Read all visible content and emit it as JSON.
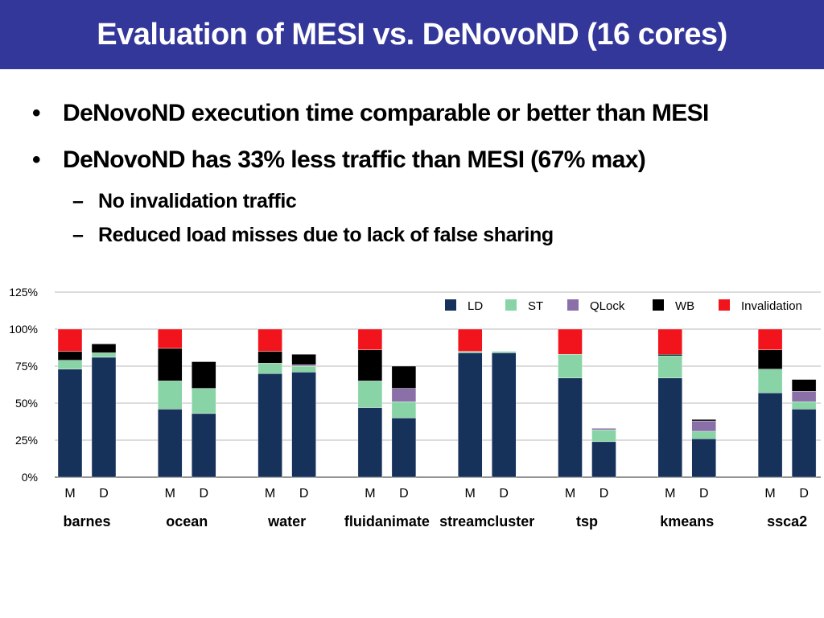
{
  "slide": {
    "title": "Evaluation of MESI vs. DeNovoND (16 cores)",
    "bullets": [
      "DeNovoND execution time comparable or better than MESI",
      "DeNovoND has 33% less traffic than MESI (67% max)"
    ],
    "sub_bullets": [
      "No invalidation traffic",
      "Reduced load misses due to lack of false sharing"
    ],
    "bullet_marker": "•",
    "sub_marker": "–"
  },
  "chart_data": {
    "type": "bar",
    "stacked": true,
    "y_tick_labels": [
      "0%",
      "25%",
      "50%",
      "75%",
      "100%",
      "125%"
    ],
    "y_ticks": [
      0,
      25,
      50,
      75,
      100,
      125
    ],
    "ylim": [
      0,
      125
    ],
    "grid": true,
    "legend_position": "top-right",
    "legend": [
      "LD",
      "ST",
      "QLock",
      "WB",
      "Invalidation"
    ],
    "colors": {
      "LD": "#17325a",
      "ST": "#88d4a6",
      "QLock": "#8b6fa8",
      "WB": "#000000",
      "Invalidation": "#f2141c"
    },
    "groups": [
      {
        "name": "barnes",
        "bars": [
          {
            "label": "M",
            "values": {
              "LD": 73,
              "ST": 6,
              "QLock": 0,
              "WB": 6,
              "Invalidation": 15
            }
          },
          {
            "label": "D",
            "values": {
              "LD": 81,
              "ST": 3,
              "QLock": 0,
              "WB": 6,
              "Invalidation": 0
            }
          }
        ]
      },
      {
        "name": "ocean",
        "bars": [
          {
            "label": "M",
            "values": {
              "LD": 46,
              "ST": 19,
              "QLock": 0,
              "WB": 22,
              "Invalidation": 13
            }
          },
          {
            "label": "D",
            "values": {
              "LD": 43,
              "ST": 17,
              "QLock": 0,
              "WB": 18,
              "Invalidation": 0
            }
          }
        ]
      },
      {
        "name": "water",
        "bars": [
          {
            "label": "M",
            "values": {
              "LD": 70,
              "ST": 7,
              "QLock": 0,
              "WB": 8,
              "Invalidation": 15
            }
          },
          {
            "label": "D",
            "values": {
              "LD": 71,
              "ST": 4,
              "QLock": 1,
              "WB": 7,
              "Invalidation": 0
            }
          }
        ]
      },
      {
        "name": "fluidanimate",
        "bars": [
          {
            "label": "M",
            "values": {
              "LD": 47,
              "ST": 18,
              "QLock": 0,
              "WB": 21,
              "Invalidation": 14
            }
          },
          {
            "label": "D",
            "values": {
              "LD": 40,
              "ST": 11,
              "QLock": 9,
              "WB": 15,
              "Invalidation": 0
            }
          }
        ]
      },
      {
        "name": "streamcluster",
        "bars": [
          {
            "label": "M",
            "values": {
              "LD": 84,
              "ST": 1,
              "QLock": 0,
              "WB": 0,
              "Invalidation": 15
            }
          },
          {
            "label": "D",
            "values": {
              "LD": 84,
              "ST": 1,
              "QLock": 0,
              "WB": 0,
              "Invalidation": 0
            }
          }
        ]
      },
      {
        "name": "tsp",
        "bars": [
          {
            "label": "M",
            "values": {
              "LD": 67,
              "ST": 16,
              "QLock": 0,
              "WB": 0,
              "Invalidation": 17
            }
          },
          {
            "label": "D",
            "values": {
              "LD": 24,
              "ST": 8,
              "QLock": 1,
              "WB": 0,
              "Invalidation": 0
            }
          }
        ]
      },
      {
        "name": "kmeans",
        "bars": [
          {
            "label": "M",
            "values": {
              "LD": 67,
              "ST": 15,
              "QLock": 0,
              "WB": 1,
              "Invalidation": 17
            }
          },
          {
            "label": "D",
            "values": {
              "LD": 26,
              "ST": 5,
              "QLock": 7,
              "WB": 1,
              "Invalidation": 0
            }
          }
        ]
      },
      {
        "name": "ssca2",
        "bars": [
          {
            "label": "M",
            "values": {
              "LD": 57,
              "ST": 16,
              "QLock": 0,
              "WB": 13,
              "Invalidation": 14
            }
          },
          {
            "label": "D",
            "values": {
              "LD": 46,
              "ST": 5,
              "QLock": 7,
              "WB": 8,
              "Invalidation": 0
            }
          }
        ]
      }
    ]
  }
}
